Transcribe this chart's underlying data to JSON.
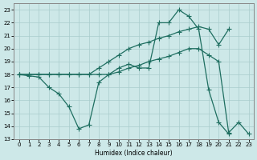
{
  "bg_color": "#cde8e8",
  "line_color": "#1e6e60",
  "grid_color": "#a8cccc",
  "xlabel": "Humidex (Indice chaleur)",
  "xlim": [
    -0.5,
    23.5
  ],
  "ylim": [
    13,
    23.5
  ],
  "yticks": [
    13,
    14,
    15,
    16,
    17,
    18,
    19,
    20,
    21,
    22,
    23
  ],
  "xticks": [
    0,
    1,
    2,
    3,
    4,
    5,
    6,
    7,
    8,
    9,
    10,
    11,
    12,
    13,
    14,
    15,
    16,
    17,
    18,
    19,
    20,
    21,
    22,
    23
  ],
  "curve1_x": [
    0,
    1,
    2,
    3,
    4,
    5,
    6,
    7,
    8,
    9,
    10,
    11,
    12,
    13,
    14,
    15,
    16,
    17,
    18,
    19,
    20,
    21
  ],
  "curve1_y": [
    18.0,
    17.9,
    17.8,
    17.0,
    16.5,
    15.5,
    13.8,
    14.1,
    17.4,
    18.0,
    18.5,
    18.8,
    18.5,
    18.5,
    22.0,
    22.0,
    23.0,
    22.5,
    21.5,
    16.8,
    14.3,
    13.4
  ],
  "curve2_x": [
    0,
    1,
    2,
    3,
    4,
    5,
    6,
    7,
    8,
    9,
    10,
    11,
    12,
    13,
    14,
    15,
    16,
    17,
    18,
    19,
    20,
    21
  ],
  "curve2_y": [
    18.0,
    18.0,
    18.0,
    18.0,
    18.0,
    18.0,
    18.0,
    18.0,
    18.5,
    19.0,
    19.5,
    20.0,
    20.3,
    20.5,
    20.8,
    21.0,
    21.3,
    21.5,
    21.7,
    21.5,
    20.3,
    21.5
  ],
  "curve3_x": [
    0,
    1,
    2,
    3,
    4,
    5,
    6,
    7,
    8,
    9,
    10,
    11,
    12,
    13,
    14,
    15,
    16,
    17,
    18,
    19,
    20,
    21,
    22,
    23
  ],
  "curve3_y": [
    18.0,
    18.0,
    18.0,
    18.0,
    18.0,
    18.0,
    18.0,
    18.0,
    18.0,
    18.0,
    18.2,
    18.5,
    18.7,
    19.0,
    19.2,
    19.4,
    19.7,
    20.0,
    20.0,
    19.5,
    19.0,
    13.5,
    14.3,
    13.4
  ],
  "markersize": 2.5,
  "linewidth": 0.9
}
